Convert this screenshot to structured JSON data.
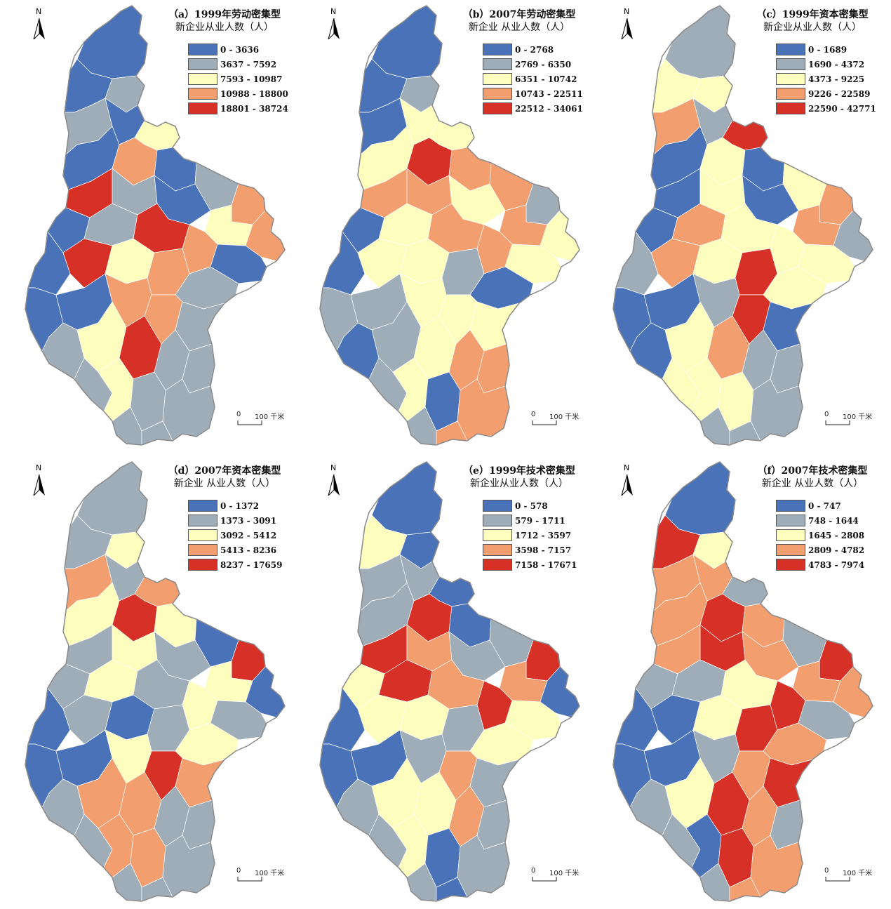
{
  "colors": {
    "class1": "#4a72b8",
    "class2": "#9fadb9",
    "class3": "#fdfdbe",
    "class4": "#f29e6f",
    "class5": "#d63027",
    "boundary": "#8a8a8a"
  },
  "north_label": "N",
  "scale": {
    "zero": "0",
    "length": "100 千米"
  },
  "panels": [
    {
      "id": "a",
      "title": "（a）1999年劳动密集型",
      "subtitle": "新企业从业人数（人）",
      "legend": [
        "0 - 3636",
        "3637 - 7592",
        "7593 - 10987",
        "10988 - 18800",
        "18801 - 38724"
      ]
    },
    {
      "id": "b",
      "title": "（b）2007年劳动密集型",
      "subtitle": "新企业 从业人数（人）",
      "legend": [
        "0 - 2768",
        "2769 - 6350",
        "6351 - 10742",
        "10743 - 22511",
        "22512 - 34061"
      ]
    },
    {
      "id": "c",
      "title": "（c）1999年资本密集型",
      "subtitle": "新企业从业人数（人）",
      "legend": [
        "0 - 1689",
        "1690 - 4372",
        "4373 - 9225",
        "9226 - 22589",
        "22590 - 42771"
      ]
    },
    {
      "id": "d",
      "title": "（d）2007年资本密集型",
      "subtitle": "新企业 从业人数（人）",
      "legend": [
        "0 - 1372",
        "1373 - 3091",
        "3092 - 5412",
        "5413 - 8236",
        "8237 - 17659"
      ]
    },
    {
      "id": "e",
      "title": "（e）1999年技术密集型",
      "subtitle": "新企业从业人数（人）",
      "legend": [
        "0 - 578",
        "579 - 1711",
        "1712 - 3597",
        "3598 - 7157",
        "7158 - 17671"
      ]
    },
    {
      "id": "f",
      "title": "（f）2007年技术密集型",
      "subtitle": "新企业 从业人数（人）",
      "legend": [
        "0 - 747",
        "748 - 1644",
        "1645 - 2808",
        "2809 - 4782",
        "4783 - 7974"
      ]
    }
  ]
}
